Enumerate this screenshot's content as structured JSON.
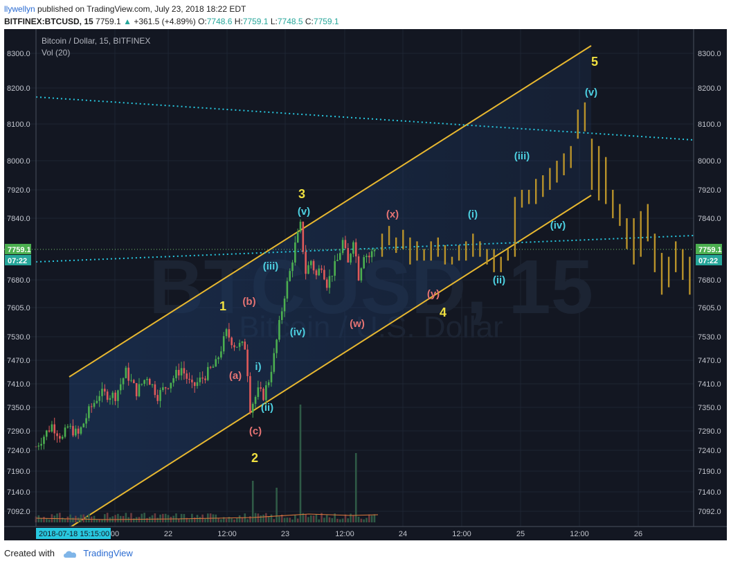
{
  "header": {
    "publisher": "llywellyn",
    "published_text": "published on TradingView.com, July 23, 2018 18:22 EDT",
    "symbol": "BITFINEX:BTCUSD, 15",
    "last": "7759.1",
    "change_arrow": "▲",
    "change": "+361.5 (+4.89%)",
    "o_label": "O:",
    "o": "7748.6",
    "h_label": "H:",
    "h": "7759.1",
    "l_label": "L:",
    "l": "7748.5",
    "c_label": "C:",
    "c": "7759.1"
  },
  "chart_title": "Bitcoin / Dollar, 15, BITFINEX",
  "volume_label": "Vol (20)",
  "watermark": {
    "line1": "BTCUSD, 15",
    "line2": "Bitcoin / U.S. Dollar"
  },
  "price_badge": {
    "price": "7759.1",
    "countdown": "07:22"
  },
  "time_badge": "2018-07-18 15:15:00",
  "footer": {
    "created_with": "Created with",
    "brand": "TradingView"
  },
  "colors": {
    "background": "#131722",
    "channel": "#e8b830",
    "trendline": "#28c8e0",
    "up_candle": "#4caf50",
    "down_candle": "#e05a5a",
    "projection": "#b8922a",
    "wave_major": "#f0e040",
    "wave_minor": "#4dd0e1",
    "wave_corrective": "#e57373"
  },
  "chart_data": {
    "type": "candlestick",
    "title": "Bitcoin / Dollar, 15, BITFINEX",
    "price_axis_ticks": [
      8300.0,
      8200.0,
      8100.0,
      8000.0,
      7920.0,
      7840.0,
      7680.0,
      7605.0,
      7530.0,
      7470.0,
      7410.0,
      7350.0,
      7290.0,
      7240.0,
      7190.0,
      7140.0,
      7092.0
    ],
    "price_axis_labels": [
      "8300.0",
      "8200.0",
      "8100.0",
      "8000.0",
      "7920.0",
      "7840.0",
      "7680.0",
      "7605.0",
      "7530.0",
      "7470.0",
      "7410.0",
      "7350.0",
      "7290.0",
      "7240.0",
      "7190.0",
      "7140.0",
      "7092.0"
    ],
    "time_axis_labels": [
      "00",
      "22",
      "12:00",
      "23",
      "12:00",
      "24",
      "12:00",
      "25",
      "12:00",
      "26"
    ],
    "current_price": 7759.1,
    "historical_path": [
      [
        0,
        7250
      ],
      [
        6,
        7305
      ],
      [
        10,
        7270
      ],
      [
        12,
        7300
      ],
      [
        16,
        7280
      ],
      [
        20,
        7340
      ],
      [
        24,
        7385
      ],
      [
        30,
        7380
      ],
      [
        34,
        7440
      ],
      [
        38,
        7390
      ],
      [
        42,
        7430
      ],
      [
        46,
        7380
      ],
      [
        50,
        7410
      ],
      [
        55,
        7450
      ],
      [
        59,
        7400
      ],
      [
        63,
        7425
      ],
      [
        68,
        7460
      ],
      [
        72,
        7540
      ],
      [
        75,
        7510
      ],
      [
        79,
        7505
      ],
      [
        80,
        7440
      ],
      [
        81,
        7350
      ],
      [
        84,
        7390
      ],
      [
        86,
        7380
      ],
      [
        88,
        7420
      ],
      [
        90,
        7480
      ],
      [
        92,
        7560
      ],
      [
        94,
        7640
      ],
      [
        96,
        7700
      ],
      [
        98,
        7770
      ],
      [
        100,
        7820
      ],
      [
        102,
        7700
      ],
      [
        104,
        7730
      ],
      [
        106,
        7690
      ],
      [
        108,
        7720
      ],
      [
        110,
        7670
      ],
      [
        112,
        7700
      ],
      [
        114,
        7730
      ],
      [
        116,
        7780
      ],
      [
        118,
        7720
      ],
      [
        120,
        7790
      ],
      [
        122,
        7690
      ],
      [
        124,
        7750
      ],
      [
        126,
        7740
      ],
      [
        128,
        7759
      ]
    ],
    "projected_bars": [
      [
        7740,
        7800
      ],
      [
        7770,
        7820
      ],
      [
        7750,
        7790
      ],
      [
        7760,
        7810
      ],
      [
        7720,
        7790
      ],
      [
        7730,
        7780
      ],
      [
        7730,
        7760
      ],
      [
        7730,
        7780
      ],
      [
        7740,
        7790
      ],
      [
        7720,
        7770
      ],
      [
        7720,
        7740
      ],
      [
        7730,
        7770
      ],
      [
        7730,
        7780
      ],
      [
        7740,
        7800
      ],
      [
        7740,
        7780
      ],
      [
        7720,
        7760
      ],
      [
        7700,
        7760
      ],
      [
        7700,
        7740
      ],
      [
        7730,
        7760
      ],
      [
        7740,
        7900
      ],
      [
        7870,
        7920
      ],
      [
        7880,
        7920
      ],
      [
        7880,
        7950
      ],
      [
        7900,
        7960
      ],
      [
        7920,
        7980
      ],
      [
        7940,
        8000
      ],
      [
        7960,
        8020
      ],
      [
        7980,
        8040
      ],
      [
        8060,
        8140
      ],
      [
        8080,
        8160
      ],
      [
        7920,
        8060
      ],
      [
        7890,
        8040
      ],
      [
        7880,
        8010
      ],
      [
        7840,
        7920
      ],
      [
        7820,
        7880
      ],
      [
        7760,
        7840
      ],
      [
        7720,
        7840
      ],
      [
        7740,
        7860
      ],
      [
        7780,
        7880
      ],
      [
        7700,
        7800
      ],
      [
        7640,
        7750
      ],
      [
        7660,
        7740
      ],
      [
        7700,
        7780
      ],
      [
        7680,
        7760
      ],
      [
        7640,
        7740
      ]
    ],
    "wave_labels": {
      "major": [
        "1",
        "2",
        "3",
        "4",
        "5"
      ],
      "minor": [
        "i)",
        "(ii)",
        "(iii)",
        "(iv)",
        "(v)",
        "(i)",
        "(ii)",
        "(iii)",
        "(iv)",
        "(v)"
      ],
      "corrective": [
        "(a)",
        "(b)",
        "(c)",
        "(w)",
        "(x)",
        "(y)"
      ]
    },
    "grid": true
  }
}
